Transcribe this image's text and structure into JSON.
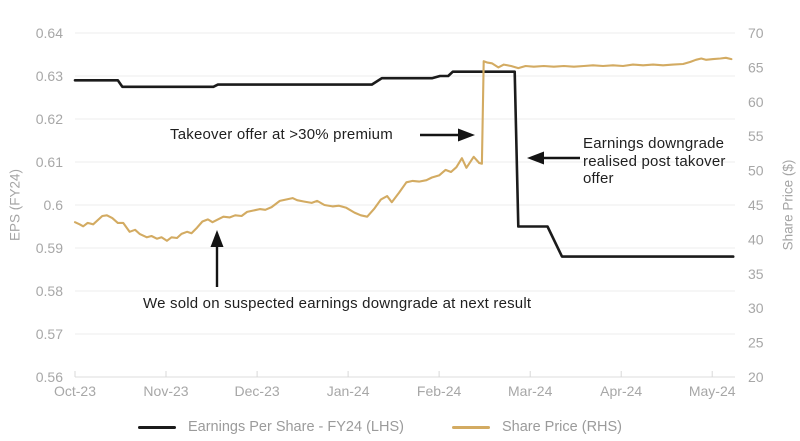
{
  "chart_data": {
    "type": "line",
    "title": "",
    "grid": "horizontal",
    "legend_position": "bottom",
    "ylabel_left": "EPS (FY24)",
    "ylabel_right": "Share Price ($)",
    "x_tick_labels": [
      "Oct-23",
      "Nov-23",
      "Dec-23",
      "Jan-24",
      "Feb-24",
      "Mar-24",
      "Apr-24",
      "May-24"
    ],
    "x_range": [
      0,
      7.25
    ],
    "y_left_ticks": [
      "0.64",
      "0.63",
      "0.62",
      "0.61",
      "0.6",
      "0.59",
      "0.58",
      "0.57",
      "0.56"
    ],
    "y_left_range": [
      0.56,
      0.64
    ],
    "y_right_ticks": [
      "70",
      "65",
      "60",
      "55",
      "50",
      "45",
      "40",
      "35",
      "30",
      "25",
      "20"
    ],
    "y_right_range": [
      20,
      70
    ],
    "series": [
      {
        "id": "eps-line",
        "name": "Earnings Per Share - FY24 (LHS)",
        "axis": "left",
        "color": "#1b1b1b",
        "width": 2.6,
        "points": [
          [
            0.0,
            0.629
          ],
          [
            0.47,
            0.629
          ],
          [
            0.52,
            0.6275
          ],
          [
            1.52,
            0.6275
          ],
          [
            1.57,
            0.628
          ],
          [
            3.26,
            0.628
          ],
          [
            3.37,
            0.6295
          ],
          [
            3.92,
            0.6295
          ],
          [
            4.01,
            0.63
          ],
          [
            4.1,
            0.63
          ],
          [
            4.15,
            0.631
          ],
          [
            4.83,
            0.631
          ],
          [
            4.87,
            0.595
          ],
          [
            5.19,
            0.595
          ],
          [
            5.35,
            0.588
          ],
          [
            7.23,
            0.588
          ]
        ]
      },
      {
        "id": "share-price-line",
        "name": "Share Price (RHS)",
        "axis": "right",
        "color": "#d3ab62",
        "width": 2.1,
        "points": [
          [
            0.0,
            42.5
          ],
          [
            0.05,
            42.2
          ],
          [
            0.09,
            41.9
          ],
          [
            0.14,
            42.4
          ],
          [
            0.2,
            42.2
          ],
          [
            0.3,
            43.4
          ],
          [
            0.35,
            43.5
          ],
          [
            0.41,
            43.1
          ],
          [
            0.47,
            42.4
          ],
          [
            0.53,
            42.4
          ],
          [
            0.6,
            41.1
          ],
          [
            0.66,
            41.4
          ],
          [
            0.71,
            40.8
          ],
          [
            0.79,
            40.3
          ],
          [
            0.84,
            40.5
          ],
          [
            0.9,
            40.1
          ],
          [
            0.95,
            40.3
          ],
          [
            1.01,
            39.8
          ],
          [
            1.06,
            40.3
          ],
          [
            1.12,
            40.2
          ],
          [
            1.17,
            40.8
          ],
          [
            1.23,
            41.1
          ],
          [
            1.28,
            40.9
          ],
          [
            1.34,
            41.7
          ],
          [
            1.4,
            42.6
          ],
          [
            1.46,
            42.9
          ],
          [
            1.51,
            42.5
          ],
          [
            1.57,
            42.9
          ],
          [
            1.63,
            43.3
          ],
          [
            1.7,
            43.2
          ],
          [
            1.76,
            43.5
          ],
          [
            1.83,
            43.4
          ],
          [
            1.89,
            44.0
          ],
          [
            1.96,
            44.2
          ],
          [
            2.03,
            44.4
          ],
          [
            2.09,
            44.3
          ],
          [
            2.16,
            44.7
          ],
          [
            2.25,
            45.6
          ],
          [
            2.32,
            45.8
          ],
          [
            2.39,
            46.0
          ],
          [
            2.44,
            45.7
          ],
          [
            2.52,
            45.5
          ],
          [
            2.6,
            45.3
          ],
          [
            2.66,
            45.6
          ],
          [
            2.74,
            45.0
          ],
          [
            2.83,
            44.8
          ],
          [
            2.9,
            44.9
          ],
          [
            2.98,
            44.6
          ],
          [
            3.07,
            43.9
          ],
          [
            3.14,
            43.5
          ],
          [
            3.21,
            43.3
          ],
          [
            3.29,
            44.5
          ],
          [
            3.36,
            45.8
          ],
          [
            3.43,
            46.3
          ],
          [
            3.48,
            45.4
          ],
          [
            3.56,
            46.8
          ],
          [
            3.64,
            48.3
          ],
          [
            3.71,
            48.5
          ],
          [
            3.78,
            48.4
          ],
          [
            3.86,
            48.6
          ],
          [
            3.92,
            49.0
          ],
          [
            4.0,
            49.3
          ],
          [
            4.07,
            50.1
          ],
          [
            4.13,
            49.8
          ],
          [
            4.19,
            50.5
          ],
          [
            4.25,
            51.8
          ],
          [
            4.3,
            50.4
          ],
          [
            4.38,
            52.0
          ],
          [
            4.44,
            51.1
          ],
          [
            4.47,
            51.0
          ],
          [
            4.49,
            65.9
          ],
          [
            4.53,
            65.7
          ],
          [
            4.58,
            65.6
          ],
          [
            4.65,
            65.0
          ],
          [
            4.71,
            65.4
          ],
          [
            4.79,
            65.2
          ],
          [
            4.87,
            64.9
          ],
          [
            4.95,
            65.2
          ],
          [
            5.04,
            65.1
          ],
          [
            5.15,
            65.2
          ],
          [
            5.26,
            65.1
          ],
          [
            5.37,
            65.2
          ],
          [
            5.48,
            65.1
          ],
          [
            5.59,
            65.2
          ],
          [
            5.69,
            65.3
          ],
          [
            5.8,
            65.2
          ],
          [
            5.91,
            65.3
          ],
          [
            6.02,
            65.2
          ],
          [
            6.13,
            65.4
          ],
          [
            6.24,
            65.3
          ],
          [
            6.35,
            65.4
          ],
          [
            6.46,
            65.3
          ],
          [
            6.57,
            65.4
          ],
          [
            6.68,
            65.5
          ],
          [
            6.76,
            65.8
          ],
          [
            6.82,
            66.1
          ],
          [
            6.88,
            66.3
          ],
          [
            6.93,
            66.1
          ],
          [
            7.01,
            66.2
          ],
          [
            7.09,
            66.3
          ],
          [
            7.15,
            66.4
          ],
          [
            7.21,
            66.2
          ]
        ]
      }
    ],
    "annotations": [
      {
        "text": "Takeover offer at >30% premium",
        "arrow": "right"
      },
      {
        "text": "Earnings downgrade realised post takover offer",
        "arrow": "left"
      },
      {
        "text": "We sold on suspected earnings downgrade at next result",
        "arrow": "up"
      }
    ]
  }
}
